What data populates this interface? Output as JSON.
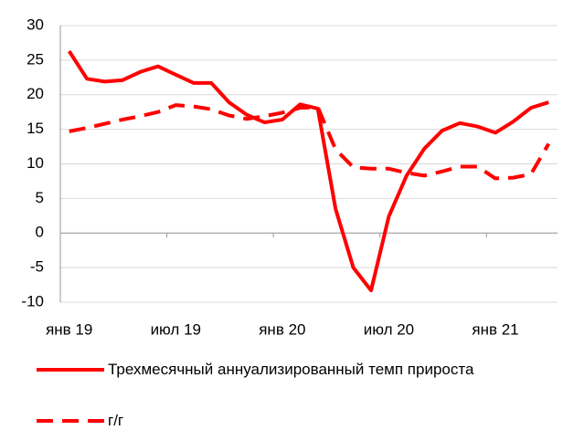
{
  "chart_data": {
    "type": "line",
    "categories": [
      "янв 19",
      null,
      null,
      null,
      null,
      null,
      "июл 19",
      null,
      null,
      null,
      null,
      null,
      "янв 20",
      null,
      null,
      null,
      null,
      null,
      "июл 20",
      null,
      null,
      null,
      null,
      null,
      "янв 21",
      null,
      null,
      null
    ],
    "series": [
      {
        "name": "Трехмесячный аннуализированный темп прироста",
        "color": "#ff0000",
        "dash": false,
        "values": [
          26.3,
          22.3,
          21.9,
          22.1,
          23.3,
          24.1,
          22.9,
          21.7,
          21.7,
          18.9,
          17.1,
          16.0,
          16.4,
          18.6,
          18.0,
          3.5,
          -5.0,
          -8.3,
          2.4,
          8.3,
          12.2,
          14.8,
          15.9,
          15.4,
          14.5,
          16.1,
          18.1,
          18.9
        ]
      },
      {
        "name": "г/г",
        "color": "#ff0000",
        "dash": true,
        "values": [
          14.7,
          15.2,
          15.8,
          16.4,
          16.9,
          17.5,
          18.5,
          18.3,
          17.9,
          17.0,
          16.5,
          16.9,
          17.4,
          18.1,
          18.2,
          12.1,
          9.5,
          9.3,
          9.3,
          8.7,
          8.3,
          8.9,
          9.6,
          9.6,
          7.9,
          8.0,
          8.5,
          12.9
        ]
      }
    ],
    "ylim": [
      -10,
      30
    ],
    "yticks": [
      -10,
      -5,
      0,
      5,
      10,
      15,
      20,
      25,
      30
    ],
    "grid": true
  }
}
